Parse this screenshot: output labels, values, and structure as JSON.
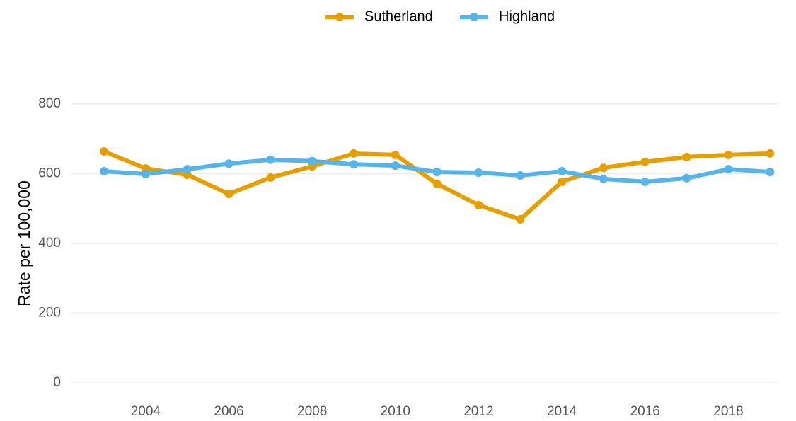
{
  "chart_data": {
    "type": "line",
    "y_label": "Rate per 100,000",
    "x": [
      2003,
      2004,
      2005,
      2006,
      2007,
      2008,
      2009,
      2010,
      2011,
      2012,
      2013,
      2014,
      2015,
      2016,
      2017,
      2018,
      2019
    ],
    "series": [
      {
        "name": "Sutherland",
        "color": "#e69f00",
        "values": [
          664,
          615,
          597,
          542,
          589,
          621,
          658,
          654,
          571,
          510,
          469,
          577,
          617,
          634,
          648,
          654,
          658
        ]
      },
      {
        "name": "Highland",
        "color": "#56b4e9",
        "values": [
          607,
          599,
          613,
          629,
          640,
          636,
          627,
          623,
          605,
          603,
          595,
          607,
          585,
          577,
          587,
          613,
          605
        ]
      }
    ],
    "xlim": [
      2002.2,
      2019.2
    ],
    "xticks": [
      2004,
      2006,
      2008,
      2010,
      2012,
      2014,
      2016,
      2018
    ],
    "ylim": [
      0,
      800
    ],
    "yticks": [
      0,
      200,
      400,
      600,
      800
    ],
    "grid": true,
    "legend": "top"
  }
}
